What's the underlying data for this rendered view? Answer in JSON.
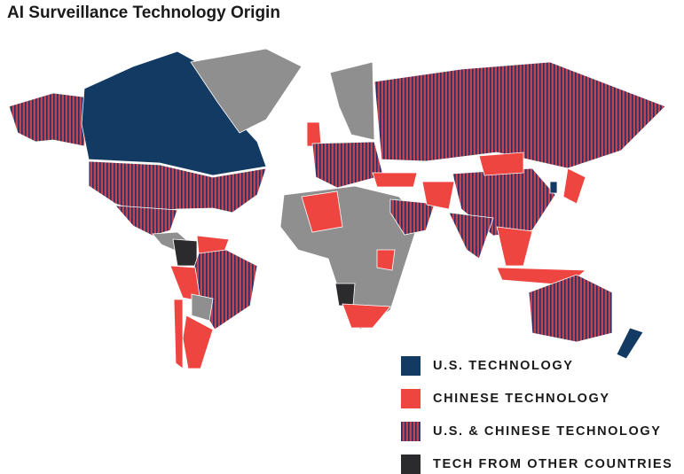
{
  "title": "AI Surveillance Technology Origin",
  "legend": [
    {
      "label": "U.S. TECHNOLOGY",
      "color": "#123a63"
    },
    {
      "label": "CHINESE TECHNOLOGY",
      "color": "#ee4540"
    },
    {
      "label": "U.S. & CHINESE TECHNOLOGY",
      "color": "#c9404a",
      "stripe_color": "#2b2d66"
    },
    {
      "label": "TECH FROM OTHER COUNTRIES",
      "color": "#2b2b2e"
    }
  ]
}
